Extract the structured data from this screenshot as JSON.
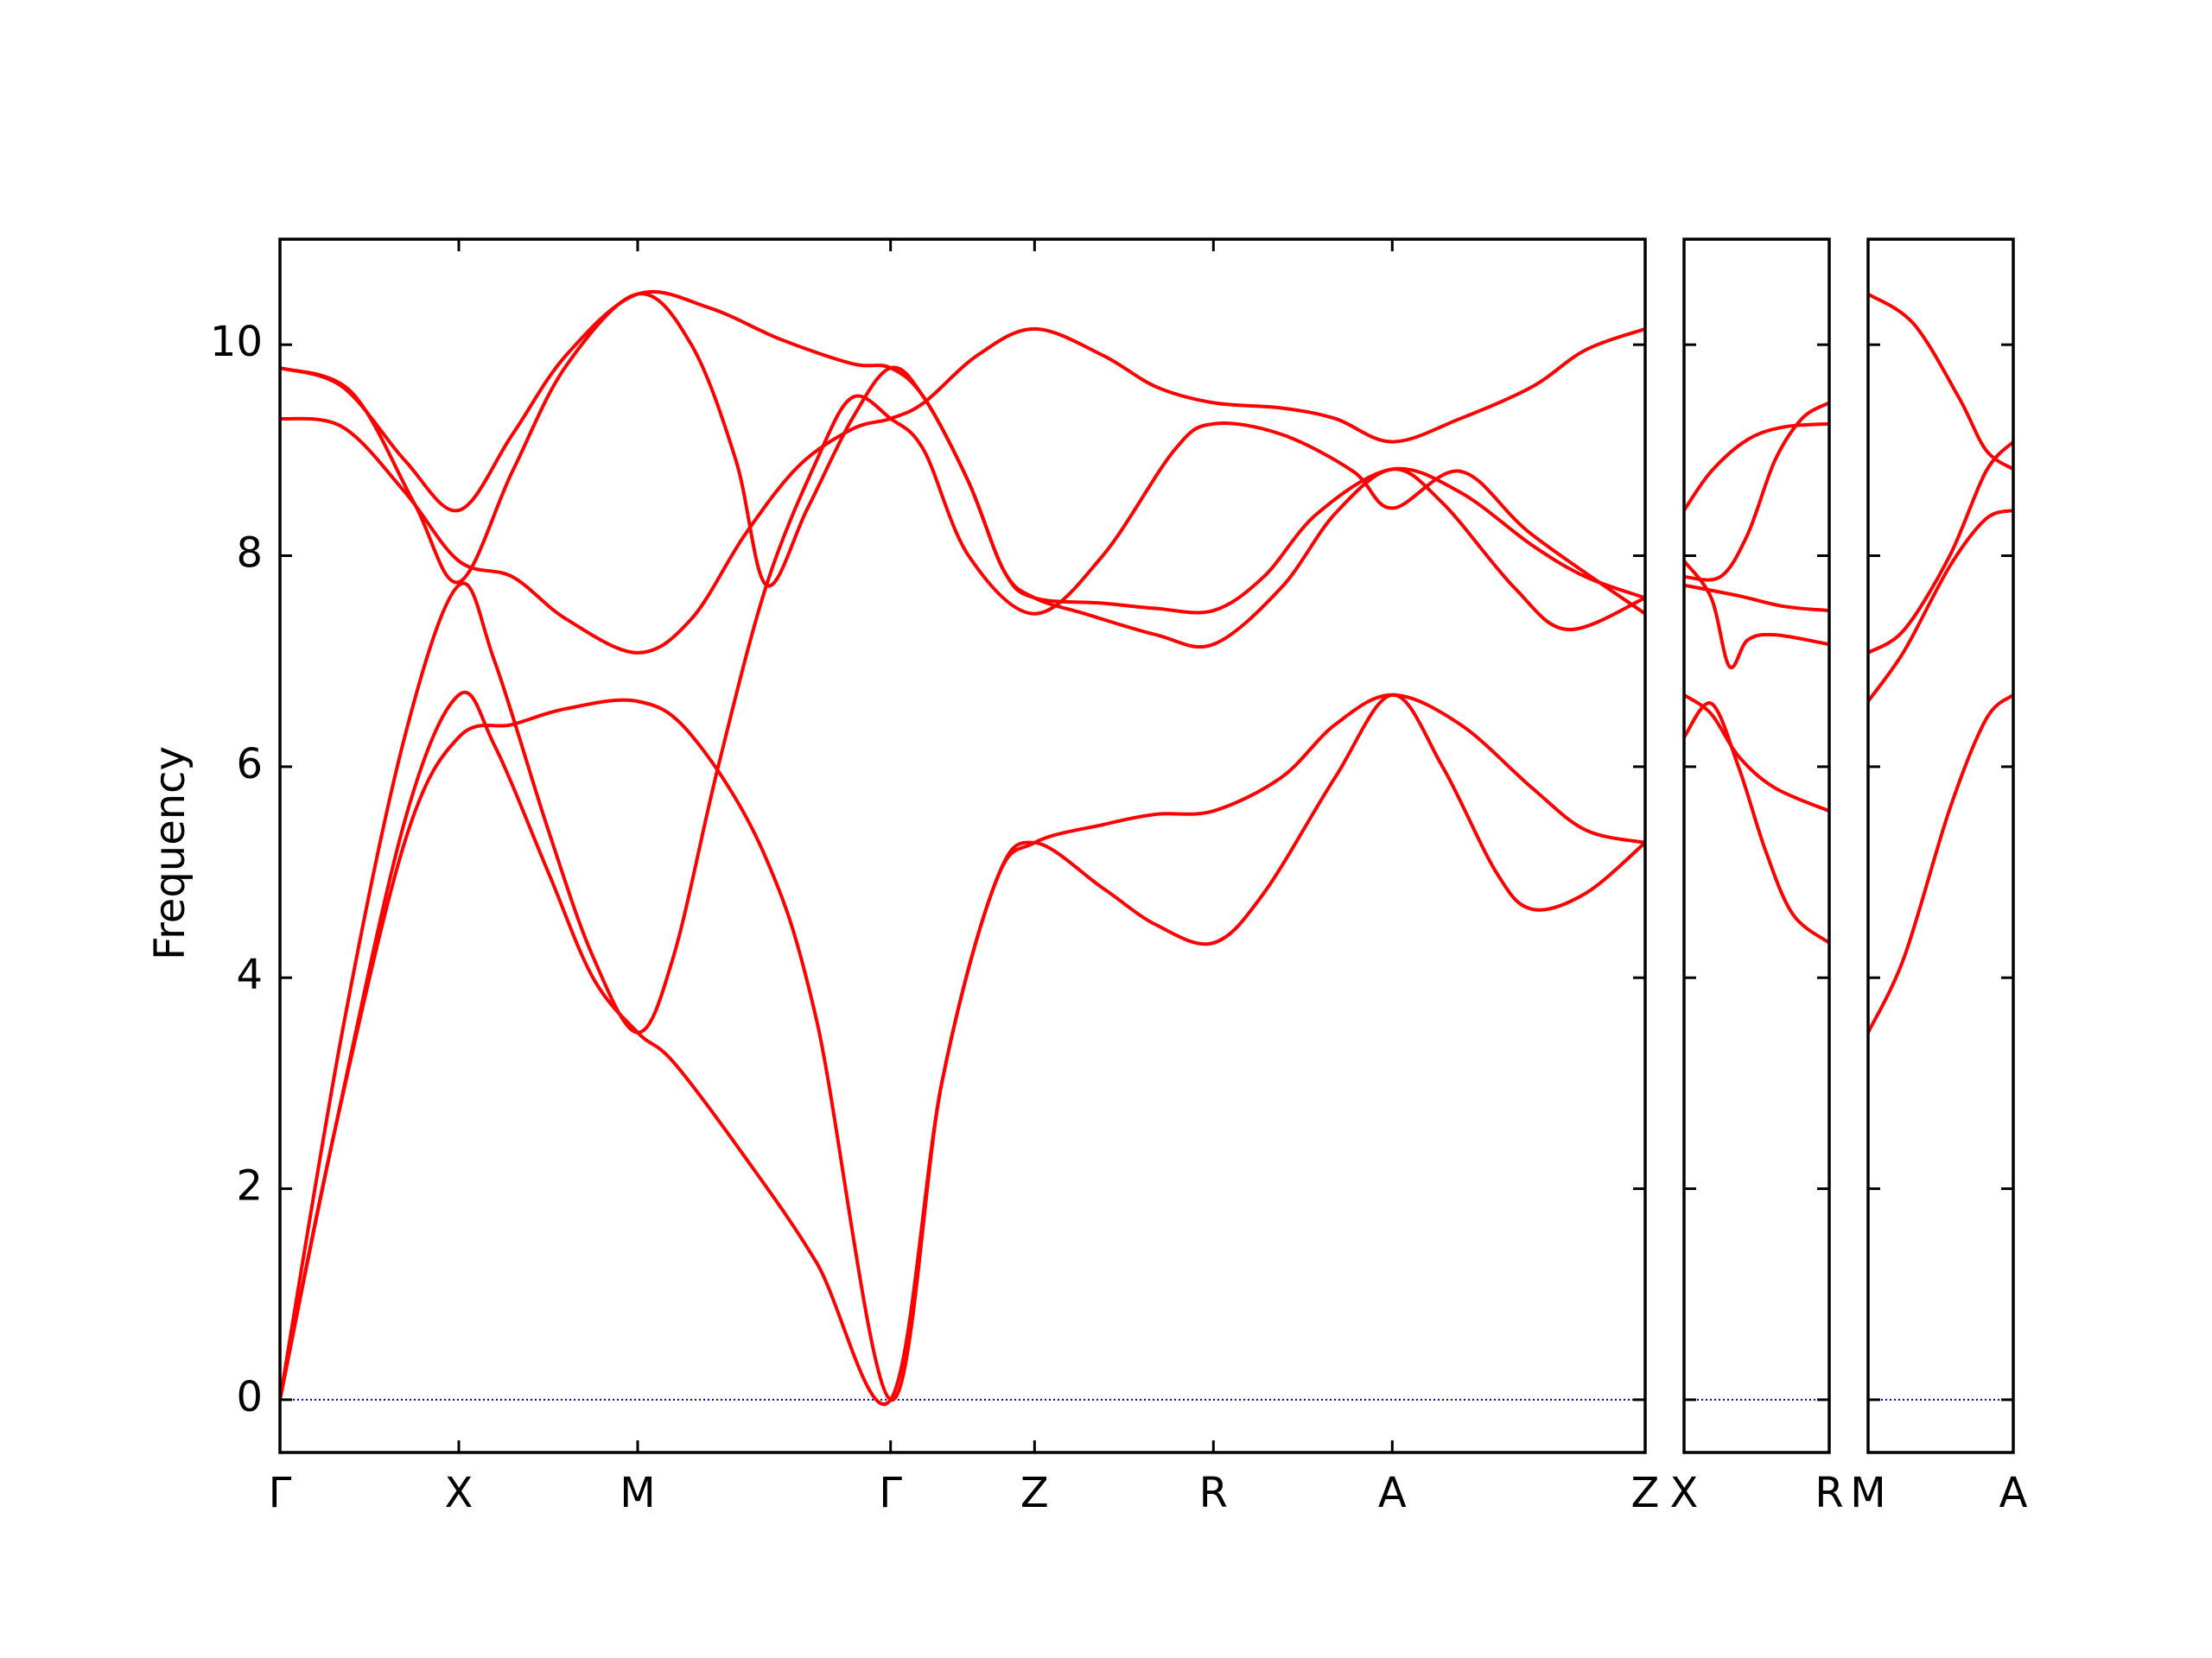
{
  "chart_data": {
    "type": "line",
    "ylabel": "Frequency",
    "ylim": [
      -0.5,
      11
    ],
    "yticks": [
      "0",
      "2",
      "4",
      "6",
      "8",
      "10"
    ],
    "line_color": "#ff0000",
    "zero_line_color": "#0000cc",
    "panels": [
      {
        "name": "main",
        "xticks": [
          {
            "label": "Γ",
            "x": 0
          },
          {
            "label": "X",
            "x": 1
          },
          {
            "label": "M",
            "x": 2
          },
          {
            "label": "Γ",
            "x": 3.414
          },
          {
            "label": "Z",
            "x": 4.219
          },
          {
            "label": "R",
            "x": 5.219
          },
          {
            "label": "A",
            "x": 6.219
          },
          {
            "label": "Z",
            "x": 7.633
          }
        ],
        "xlim": [
          0,
          7.633
        ],
        "bands": [
          [
            [
              0,
              9.3
            ],
            [
              0.35,
              9.22
            ],
            [
              0.7,
              8.6
            ],
            [
              1,
              7.95
            ],
            [
              1.3,
              7.8
            ],
            [
              1.6,
              7.4
            ],
            [
              2,
              7.08
            ],
            [
              2.3,
              7.4
            ],
            [
              2.6,
              8.2
            ],
            [
              2.9,
              8.85
            ],
            [
              3.2,
              9.2
            ],
            [
              3.414,
              9.3
            ],
            [
              3.6,
              9.45
            ],
            [
              3.9,
              9.9
            ],
            [
              4.219,
              10.15
            ],
            [
              4.6,
              9.9
            ],
            [
              4.9,
              9.6
            ],
            [
              5.219,
              9.45
            ],
            [
              5.6,
              9.4
            ],
            [
              5.9,
              9.3
            ],
            [
              6.219,
              9.08
            ],
            [
              6.6,
              9.3
            ],
            [
              7,
              9.6
            ],
            [
              7.3,
              9.95
            ],
            [
              7.633,
              10.15
            ]
          ],
          [
            [
              0,
              9.78
            ],
            [
              0.35,
              9.6
            ],
            [
              0.7,
              8.9
            ],
            [
              1,
              8.43
            ],
            [
              1.3,
              9.15
            ],
            [
              1.6,
              9.9
            ],
            [
              2,
              10.48
            ],
            [
              2.4,
              10.35
            ],
            [
              2.8,
              10.05
            ],
            [
              3.2,
              9.82
            ],
            [
              3.414,
              9.78
            ],
            [
              3.6,
              9.5
            ],
            [
              3.85,
              8.7
            ],
            [
              4.05,
              7.85
            ],
            [
              4.219,
              7.6
            ],
            [
              4.6,
              7.55
            ],
            [
              4.9,
              7.5
            ],
            [
              5.219,
              7.48
            ],
            [
              5.5,
              7.8
            ],
            [
              5.8,
              8.4
            ],
            [
              6.219,
              8.82
            ],
            [
              6.6,
              8.6
            ],
            [
              7,
              8.1
            ],
            [
              7.3,
              7.8
            ],
            [
              7.633,
              7.6
            ]
          ],
          [
            [
              0,
              9.78
            ],
            [
              0.4,
              9.55
            ],
            [
              0.75,
              8.5
            ],
            [
              1,
              7.75
            ],
            [
              1.3,
              8.8
            ],
            [
              1.6,
              9.8
            ],
            [
              2,
              10.48
            ],
            [
              2.3,
              10.0
            ],
            [
              2.55,
              8.9
            ],
            [
              2.72,
              7.72
            ],
            [
              2.95,
              8.45
            ],
            [
              3.2,
              9.3
            ],
            [
              3.414,
              9.78
            ],
            [
              3.6,
              9.5
            ],
            [
              3.85,
              8.7
            ],
            [
              4.05,
              7.85
            ],
            [
              4.219,
              7.6
            ],
            [
              4.5,
              7.45
            ],
            [
              4.9,
              7.25
            ],
            [
              5.219,
              7.16
            ],
            [
              5.6,
              7.7
            ],
            [
              5.9,
              8.4
            ],
            [
              6.219,
              8.82
            ],
            [
              6.5,
              8.5
            ],
            [
              6.9,
              7.7
            ],
            [
              7.2,
              7.3
            ],
            [
              7.633,
              7.6
            ]
          ],
          [
            [
              0,
              0
            ],
            [
              0.35,
              3.5
            ],
            [
              0.7,
              6.3
            ],
            [
              1,
              7.72
            ],
            [
              1.2,
              7.0
            ],
            [
              1.5,
              5.4
            ],
            [
              1.75,
              4.2
            ],
            [
              2,
              3.48
            ],
            [
              2.2,
              4.2
            ],
            [
              2.45,
              6.0
            ],
            [
              2.72,
              7.72
            ],
            [
              3.0,
              8.9
            ],
            [
              3.2,
              9.5
            ],
            [
              3.414,
              9.3
            ],
            [
              3.6,
              9.0
            ],
            [
              3.85,
              8.0
            ],
            [
              4.219,
              7.45
            ],
            [
              4.6,
              8.0
            ],
            [
              5.0,
              9.0
            ],
            [
              5.219,
              9.25
            ],
            [
              5.6,
              9.15
            ],
            [
              6.0,
              8.8
            ],
            [
              6.219,
              8.45
            ],
            [
              6.6,
              8.8
            ],
            [
              7,
              8.2
            ],
            [
              7.633,
              7.45
            ]
          ],
          [
            [
              0,
              0
            ],
            [
              0.3,
              2.5
            ],
            [
              0.7,
              5.3
            ],
            [
              1,
              6.28
            ],
            [
              1.3,
              6.4
            ],
            [
              1.6,
              6.55
            ],
            [
              2,
              6.62
            ],
            [
              2.3,
              6.3
            ],
            [
              2.7,
              5.2
            ],
            [
              3.0,
              3.6
            ],
            [
              3.414,
              0
            ],
            [
              3.7,
              3.0
            ],
            [
              4.0,
              4.9
            ],
            [
              4.219,
              5.28
            ],
            [
              4.6,
              5.45
            ],
            [
              4.9,
              5.55
            ],
            [
              5.219,
              5.58
            ],
            [
              5.6,
              5.9
            ],
            [
              5.9,
              6.4
            ],
            [
              6.219,
              6.68
            ],
            [
              6.6,
              6.4
            ],
            [
              7,
              5.8
            ],
            [
              7.3,
              5.4
            ],
            [
              7.633,
              5.28
            ]
          ],
          [
            [
              0,
              0
            ],
            [
              0.3,
              2.5
            ],
            [
              0.7,
              5.5
            ],
            [
              1,
              6.68
            ],
            [
              1.2,
              6.2
            ],
            [
              1.5,
              5.0
            ],
            [
              1.75,
              4.0
            ],
            [
              2,
              3.48
            ],
            [
              2.2,
              3.2
            ],
            [
              2.6,
              2.3
            ],
            [
              3.0,
              1.3
            ],
            [
              3.414,
              0
            ],
            [
              3.7,
              3.0
            ],
            [
              4.0,
              4.9
            ],
            [
              4.219,
              5.28
            ],
            [
              4.6,
              4.85
            ],
            [
              4.9,
              4.5
            ],
            [
              5.219,
              4.33
            ],
            [
              5.5,
              4.8
            ],
            [
              5.9,
              5.9
            ],
            [
              6.219,
              6.68
            ],
            [
              6.5,
              6.0
            ],
            [
              6.8,
              5.0
            ],
            [
              7.0,
              4.65
            ],
            [
              7.3,
              4.8
            ],
            [
              7.633,
              5.28
            ]
          ]
        ]
      },
      {
        "name": "x-r",
        "xticks": [
          {
            "label": "X",
            "x": 0
          },
          {
            "label": "R",
            "x": 0.8
          }
        ],
        "xlim": [
          0,
          0.8
        ],
        "bands": [
          [
            [
              0,
              8.43
            ],
            [
              0.15,
              8.8
            ],
            [
              0.35,
              9.1
            ],
            [
              0.55,
              9.22
            ],
            [
              0.8,
              9.25
            ]
          ],
          [
            [
              0,
              7.8
            ],
            [
              0.2,
              7.8
            ],
            [
              0.35,
              8.2
            ],
            [
              0.5,
              8.9
            ],
            [
              0.65,
              9.3
            ],
            [
              0.8,
              9.45
            ]
          ],
          [
            [
              0,
              7.72
            ],
            [
              0.3,
              7.62
            ],
            [
              0.55,
              7.52
            ],
            [
              0.8,
              7.48
            ]
          ],
          [
            [
              0,
              7.95
            ],
            [
              0.15,
              7.6
            ],
            [
              0.25,
              6.95
            ],
            [
              0.35,
              7.2
            ],
            [
              0.5,
              7.25
            ],
            [
              0.8,
              7.16
            ]
          ],
          [
            [
              0,
              6.68
            ],
            [
              0.15,
              6.5
            ],
            [
              0.3,
              6.1
            ],
            [
              0.5,
              5.8
            ],
            [
              0.8,
              5.58
            ]
          ],
          [
            [
              0,
              6.28
            ],
            [
              0.15,
              6.6
            ],
            [
              0.3,
              6.0
            ],
            [
              0.45,
              5.2
            ],
            [
              0.6,
              4.6
            ],
            [
              0.8,
              4.33
            ]
          ]
        ]
      },
      {
        "name": "m-a",
        "xticks": [
          {
            "label": "M",
            "x": 0
          },
          {
            "label": "A",
            "x": 0.8
          }
        ],
        "xlim": [
          0,
          0.8
        ],
        "bands": [
          [
            [
              0,
              10.48
            ],
            [
              0.25,
              10.2
            ],
            [
              0.5,
              9.5
            ],
            [
              0.65,
              9.0
            ],
            [
              0.8,
              8.82
            ]
          ],
          [
            [
              0,
              7.08
            ],
            [
              0.2,
              7.3
            ],
            [
              0.45,
              8.0
            ],
            [
              0.65,
              8.8
            ],
            [
              0.8,
              9.08
            ]
          ],
          [
            [
              0,
              6.62
            ],
            [
              0.2,
              7.1
            ],
            [
              0.45,
              7.9
            ],
            [
              0.65,
              8.35
            ],
            [
              0.8,
              8.43
            ]
          ],
          [
            [
              0,
              3.48
            ],
            [
              0.2,
              4.2
            ],
            [
              0.45,
              5.6
            ],
            [
              0.65,
              6.45
            ],
            [
              0.8,
              6.68
            ]
          ]
        ]
      }
    ]
  }
}
